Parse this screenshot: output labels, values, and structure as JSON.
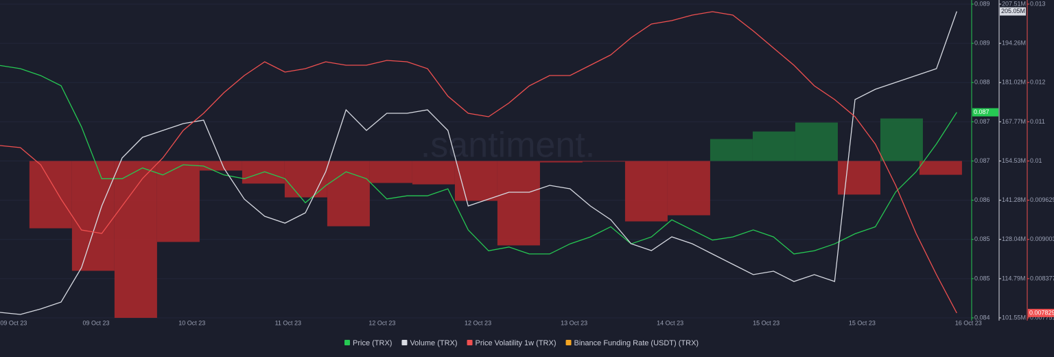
{
  "chart_data": {
    "type": "line",
    "watermark": ".santiment.",
    "xlim": [
      0,
      48
    ],
    "xticks": [
      {
        "value": 0.67,
        "label": "09 Oct 23"
      },
      {
        "value": 4.72,
        "label": "09 Oct 23"
      },
      {
        "value": 9.43,
        "label": "10 Oct 23"
      },
      {
        "value": 14.15,
        "label": "11 Oct 23"
      },
      {
        "value": 18.77,
        "label": "12 Oct 23"
      },
      {
        "value": 23.48,
        "label": "12 Oct 23"
      },
      {
        "value": 28.2,
        "label": "13 Oct 23"
      },
      {
        "value": 32.92,
        "label": "14 Oct 23"
      },
      {
        "value": 37.64,
        "label": "15 Oct 23"
      },
      {
        "value": 42.35,
        "label": "15 Oct 23"
      },
      {
        "value": 47.57,
        "label": "16 Oct 23"
      }
    ],
    "ylim": [
      0.0842,
      0.08916
    ],
    "yticks": [
      {
        "value": 0.08916,
        "label": "0.089"
      },
      {
        "value": 0.08854,
        "label": "0.089"
      },
      {
        "value": 0.08792,
        "label": "0.088"
      },
      {
        "value": 0.0873,
        "label": "0.087"
      },
      {
        "value": 0.08668,
        "label": "0.087"
      },
      {
        "value": 0.08606,
        "label": "0.086"
      },
      {
        "value": 0.08544,
        "label": "0.085"
      },
      {
        "value": 0.08482,
        "label": "0.085"
      },
      {
        "value": 0.0842,
        "label": "0.084"
      }
    ],
    "y2lim": [
      101.55,
      207.51
    ],
    "y2ticks": [
      {
        "value": 207.51,
        "label": "207.51M"
      },
      {
        "value": 194.26,
        "label": "194.26M"
      },
      {
        "value": 181.02,
        "label": "181.02M"
      },
      {
        "value": 167.77,
        "label": "167.77M"
      },
      {
        "value": 154.53,
        "label": "154.53M"
      },
      {
        "value": 141.28,
        "label": "141.28M"
      },
      {
        "value": 128.04,
        "label": "128.04M"
      },
      {
        "value": 114.79,
        "label": "114.79M"
      },
      {
        "value": 101.55,
        "label": "101.55M"
      }
    ],
    "y3lim": [
      0.007751,
      0.012759
    ],
    "y3ticks": [
      {
        "value": 0.012759,
        "label": "0.013"
      },
      {
        "value": 0.011507,
        "label": "0.012"
      },
      {
        "value": 0.010881,
        "label": "0.011"
      },
      {
        "value": 0.010255,
        "label": "0.01"
      },
      0.009629,
      0.009003,
      0.008377,
      0.007751
    ],
    "y4lim": [
      -0.01,
      0.01
    ],
    "grid": true,
    "series": [
      {
        "name": "Price (TRX)",
        "color": "#26c953",
        "axis": "y",
        "last_label": "0.087",
        "values": [
          0.08819,
          0.08814,
          0.08803,
          0.08787,
          0.08722,
          0.0864,
          0.0864,
          0.08657,
          0.08646,
          0.08662,
          0.0866,
          0.08646,
          0.0864,
          0.08651,
          0.0864,
          0.08602,
          0.08629,
          0.08651,
          0.0864,
          0.08608,
          0.08613,
          0.08613,
          0.08624,
          0.08559,
          0.08526,
          0.08532,
          0.08521,
          0.08521,
          0.08537,
          0.08548,
          0.08564,
          0.08537,
          0.08548,
          0.08575,
          0.08559,
          0.08543,
          0.08548,
          0.08559,
          0.08548,
          0.08521,
          0.08526,
          0.08537,
          0.08553,
          0.08564,
          0.08619,
          0.08651,
          0.08695,
          0.08745
        ]
      },
      {
        "name": "Volume (TRX)",
        "color": "#d8dbe3",
        "axis": "y2",
        "last_label": "205.05M",
        "values": [
          103.4,
          102.71,
          104.56,
          106.88,
          118.48,
          139.34,
          155.57,
          162.52,
          164.84,
          167.16,
          168.32,
          152.1,
          141.66,
          135.86,
          133.54,
          137.03,
          150.94,
          171.8,
          164.84,
          170.64,
          170.64,
          171.8,
          164.84,
          139.34,
          141.66,
          143.98,
          143.98,
          146.3,
          145.14,
          139.34,
          134.71,
          126.59,
          124.27,
          128.91,
          126.59,
          123.11,
          119.64,
          116.16,
          117.32,
          113.84,
          116.16,
          113.84,
          175.28,
          178.76,
          181.08,
          183.4,
          185.72,
          205.05
        ]
      },
      {
        "name": "Price Volatility 1w (TRX)",
        "color": "#f05050",
        "axis": "y3",
        "values": [
          0.010502,
          0.010469,
          0.010195,
          0.009647,
          0.009154,
          0.009099,
          0.009537,
          0.009976,
          0.010304,
          0.010743,
          0.011017,
          0.011345,
          0.011619,
          0.011839,
          0.011674,
          0.011729,
          0.011839,
          0.011784,
          0.011784,
          0.01186,
          0.011839,
          0.011729,
          0.011291,
          0.011017,
          0.010962,
          0.011181,
          0.011455,
          0.011619,
          0.011619,
          0.011784,
          0.011948,
          0.012222,
          0.012441,
          0.012496,
          0.012584,
          0.012638,
          0.012584,
          0.012332,
          0.012058,
          0.011784,
          0.011455,
          0.011236,
          0.010962,
          0.010523,
          0.009866,
          0.009099,
          0.008441,
          0.007829
        ]
      },
      {
        "name": "Binance Funding Rate (USDT) (TRX)",
        "color": "#f5a623",
        "axis": "y4",
        "type": "bar",
        "neg_color": "#a8282c",
        "pos_color": "#1d6a3a",
        "x": [
          2.49,
          4.58,
          6.67,
          8.76,
          10.85,
          12.94,
          15.03,
          17.12,
          19.21,
          21.3,
          23.39,
          25.48,
          27.57,
          29.66,
          31.75,
          33.84,
          35.93,
          38.02,
          40.11,
          42.2,
          44.29,
          46.21
        ],
        "values": [
          -0.00429,
          -0.007,
          -0.01,
          -0.00516,
          -0.00061,
          -0.00144,
          -0.00232,
          -0.00416,
          -0.0014,
          -0.00149,
          -0.00254,
          -0.00538,
          -9e-05,
          -4e-05,
          -0.00385,
          -0.00346,
          0.0014,
          0.00188,
          0.00245,
          -0.00214,
          0.00271,
          -0.00088
        ]
      }
    ]
  }
}
